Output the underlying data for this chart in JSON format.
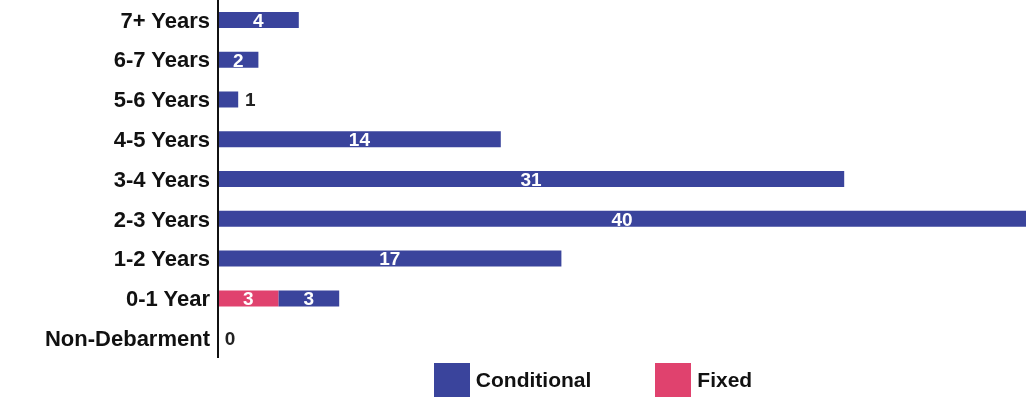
{
  "chart_data": {
    "type": "bar",
    "orientation": "horizontal",
    "stacked": true,
    "categories": [
      "7+ Years",
      "6-7 Years",
      "5-6 Years",
      "4-5 Years",
      "3-4 Years",
      "2-3 Years",
      "1-2 Years",
      "0-1 Year",
      "Non-Debarment"
    ],
    "series": [
      {
        "name": "Fixed",
        "color": "#e0426e",
        "values": [
          null,
          null,
          null,
          null,
          null,
          null,
          null,
          3,
          null
        ]
      },
      {
        "name": "Conditional",
        "color": "#3a449c",
        "values": [
          4,
          2,
          1,
          14,
          31,
          40,
          17,
          3,
          0
        ]
      }
    ],
    "xlim": [
      0,
      40
    ],
    "tick_labels": "y",
    "data_labels": true,
    "legend": "bottom",
    "grid": false
  }
}
